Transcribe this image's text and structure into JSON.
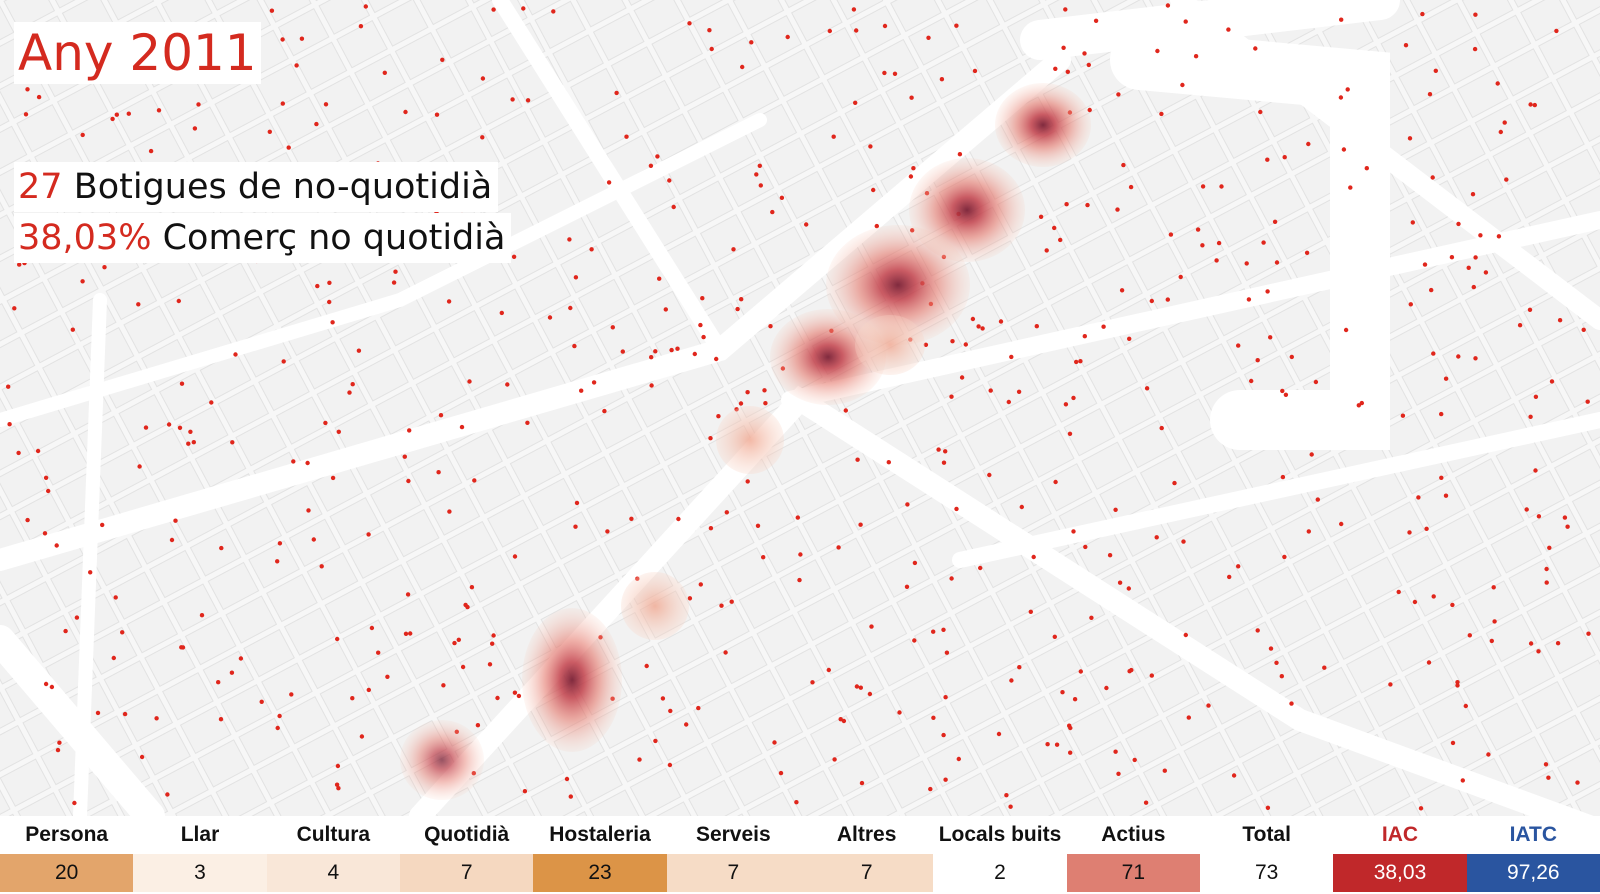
{
  "title": "Any 2011",
  "stats": [
    {
      "number": "27",
      "text": "Botigues de no-quotidià"
    },
    {
      "number": "38,03%",
      "text": "Comerç no quotidià"
    }
  ],
  "table": {
    "headers": [
      "Persona",
      "Llar",
      "Cultura",
      "Quotidià",
      "Hostaleria",
      "Serveis",
      "Altres",
      "Locals buits",
      "Actius",
      "Total",
      "IAC",
      "IATC"
    ],
    "values": [
      20,
      3,
      4,
      7,
      23,
      7,
      7,
      2,
      71,
      73,
      "38,03",
      "97,26"
    ]
  }
}
